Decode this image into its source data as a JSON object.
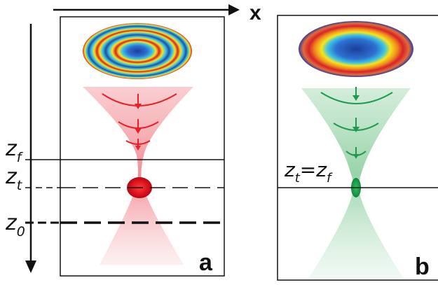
{
  "axes": {
    "x_label": "x"
  },
  "panel_a": {
    "label": "a",
    "beam_color": "#e8202a",
    "planes": [
      {
        "base": "z",
        "sub": "f",
        "style": "solid"
      },
      {
        "base": "z",
        "sub": "t",
        "style": "dashed"
      },
      {
        "base": "z",
        "sub": "0",
        "style": "dashed-bold"
      }
    ]
  },
  "panel_b": {
    "label": "b",
    "beam_color": "#1f9a4c",
    "plane": {
      "left": {
        "base": "z",
        "sub": "t"
      },
      "equals": "=",
      "right": {
        "base": "z",
        "sub": "f"
      }
    }
  },
  "colors": {
    "panel_a_fill": "#f3a8ad",
    "panel_b_fill": "#a8dcb6",
    "ring_blue": "#1d4fa3",
    "ring_red": "#d7232a",
    "ring_yellow": "#f5e51e",
    "ring_cyan": "#3cc4e6"
  }
}
